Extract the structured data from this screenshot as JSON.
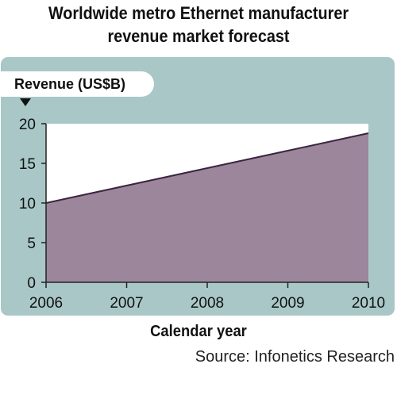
{
  "title_line1": "Worldwide metro Ethernet manufacturer",
  "title_line2": "revenue market forecast",
  "source": "Source: Infonetics Research",
  "colors": {
    "panel": "#a9c7c7",
    "area": "#9b869c",
    "line": "#3b2540"
  },
  "chart_data": {
    "type": "area",
    "title": "Worldwide metro Ethernet manufacturer revenue market forecast",
    "xlabel": "Calendar year",
    "ylabel": "Revenue (US$B)",
    "x": [
      "2006",
      "2007",
      "2008",
      "2009",
      "2010"
    ],
    "series": [
      {
        "values": [
          10,
          12.2,
          14.4,
          16.6,
          18.8
        ]
      }
    ],
    "ylim": [
      0,
      20
    ],
    "yticks": [
      "0",
      "5",
      "10",
      "15",
      "20"
    ],
    "grid": false,
    "legend": "none"
  }
}
